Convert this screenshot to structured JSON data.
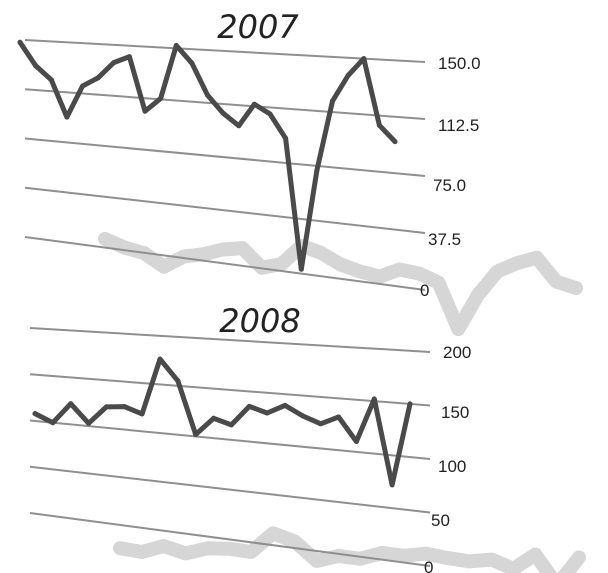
{
  "chart_data": [
    {
      "type": "line",
      "title": "2007",
      "yticks": [
        "150.0",
        "112.5",
        "75.0",
        "37.5",
        "0"
      ],
      "ylim": [
        0,
        150
      ],
      "grid": true,
      "series": [
        {
          "values": [
            148,
            131,
            121,
            94,
            118,
            125,
            137,
            142,
            103,
            113,
            152,
            140,
            118,
            106,
            98,
            114,
            108,
            92,
            3,
            72,
            120,
            138,
            150,
            106,
            96
          ],
          "color": "#4a4a4a"
        }
      ]
    },
    {
      "type": "line",
      "title": "2008",
      "yticks": [
        "200",
        "150",
        "100",
        "50",
        "0"
      ],
      "ylim": [
        0,
        200
      ],
      "grid": true,
      "series": [
        {
          "values": [
            108,
            100,
            122,
            103,
            122,
            124,
            118,
            176,
            155,
            102,
            120,
            115,
            135,
            130,
            139,
            130,
            124,
            132,
            110,
            152,
            72,
            150
          ],
          "color": "#4a4a4a"
        }
      ]
    }
  ]
}
